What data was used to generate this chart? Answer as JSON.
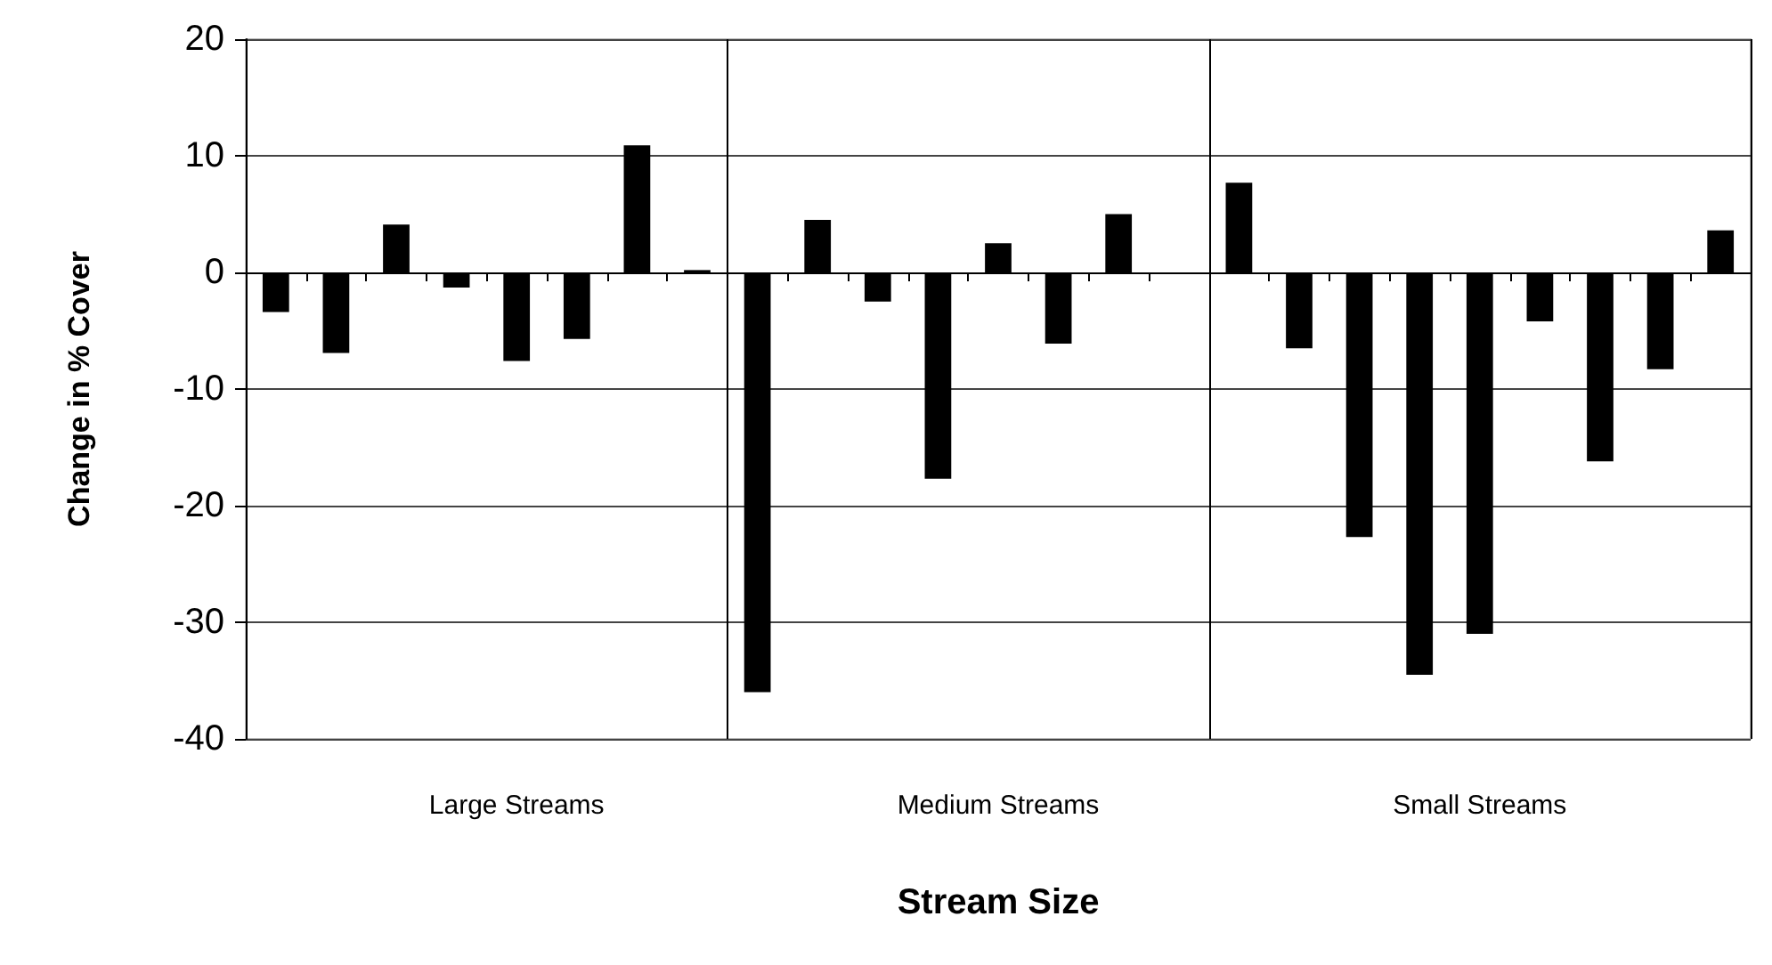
{
  "chart_data": {
    "type": "bar",
    "xlabel": "Stream Size",
    "ylabel": "Change in % Cover",
    "categories": [
      null,
      null,
      null,
      null,
      "Large Streams",
      null,
      null,
      null,
      null,
      null,
      null,
      null,
      "Medium Streams",
      null,
      null,
      null,
      null,
      null,
      null,
      null,
      "Small Streams",
      null,
      null,
      null,
      null
    ],
    "values": [
      -3.4,
      -6.9,
      4.1,
      -1.3,
      -7.6,
      -5.7,
      10.9,
      0.2,
      -36.0,
      4.5,
      -2.5,
      -17.7,
      2.5,
      -6.1,
      5.0,
      null,
      7.7,
      -6.5,
      -22.7,
      -34.5,
      -31.0,
      -4.2,
      -16.2,
      -8.3,
      3.6
    ],
    "color": "#000000",
    "ylim": [
      -40,
      20
    ],
    "yticks": [
      -40,
      -30,
      -20,
      -10,
      0,
      10,
      20
    ],
    "grid": "y"
  }
}
